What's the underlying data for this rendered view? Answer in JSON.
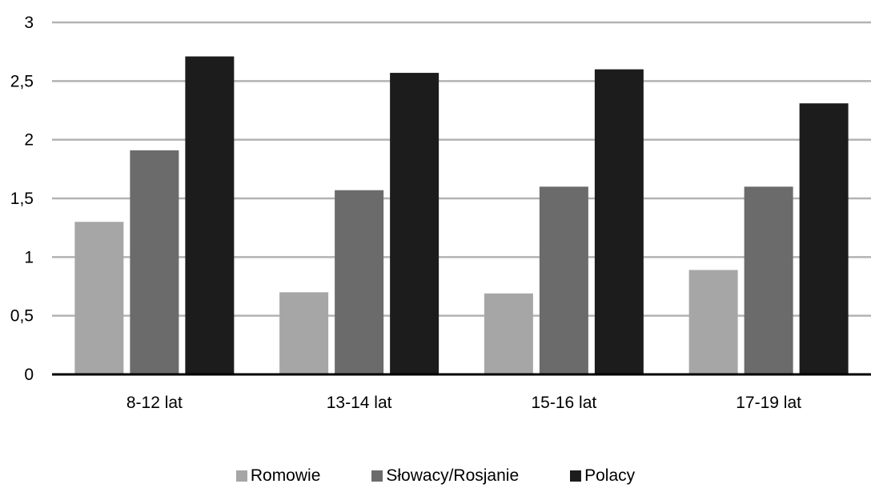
{
  "chart_data": {
    "type": "bar",
    "categories": [
      "8-12 lat",
      "13-14 lat",
      "15-16 lat",
      "17-19 lat"
    ],
    "series": [
      {
        "name": "Romowie",
        "color": "#a6a6a6",
        "values": [
          1.3,
          0.7,
          0.69,
          0.89
        ]
      },
      {
        "name": "Słowacy/Rosjanie",
        "color": "#6b6b6b",
        "values": [
          1.91,
          1.57,
          1.6,
          1.6
        ]
      },
      {
        "name": "Polacy",
        "color": "#1c1c1c",
        "values": [
          2.71,
          2.57,
          2.6,
          2.31
        ]
      }
    ],
    "y_ticks": [
      "0",
      "0,5",
      "1",
      "1,5",
      "2",
      "2,5",
      "3"
    ],
    "ylim": [
      0,
      3
    ],
    "grid": true,
    "legend_position": "bottom-center",
    "title": "",
    "xlabel": "",
    "ylabel": ""
  }
}
